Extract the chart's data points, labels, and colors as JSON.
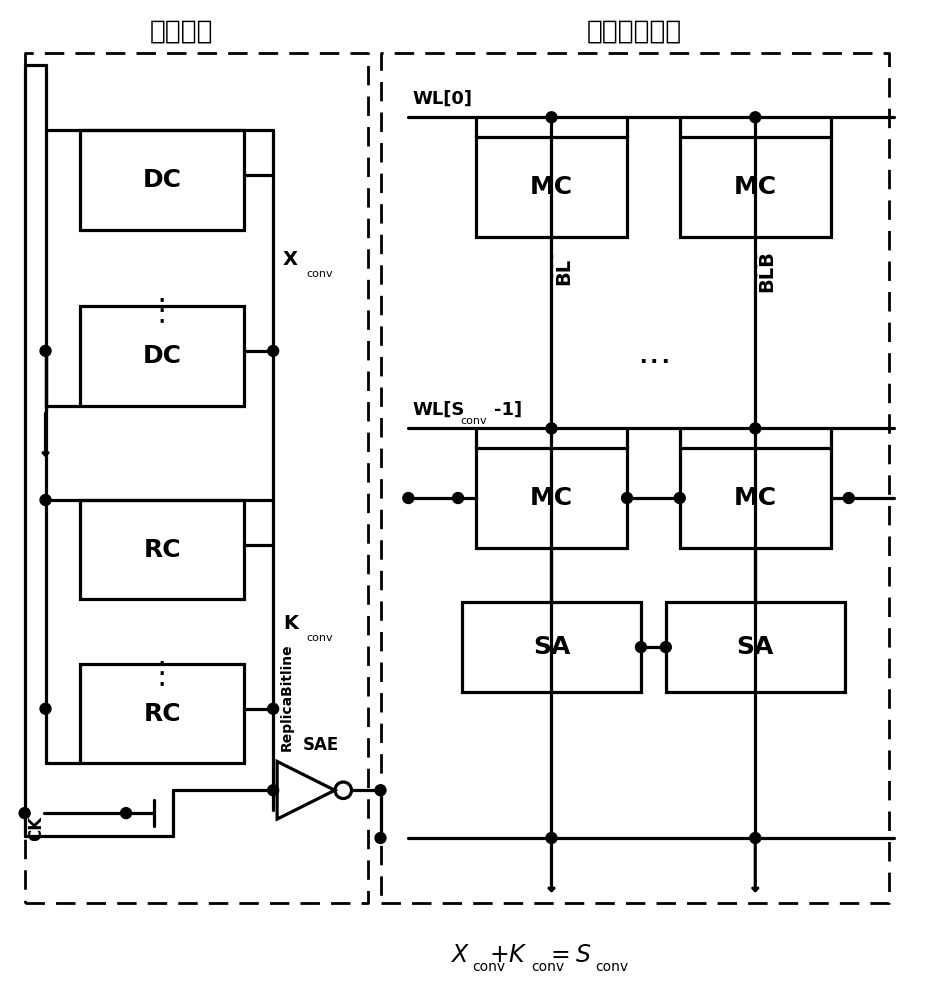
{
  "figsize": [
    9.33,
    10.0
  ],
  "dpi": 100,
  "label_timing": "时序复制",
  "label_memory": "存储单元阵列",
  "lw": 2.3,
  "xlim": [
    0,
    9.33
  ],
  "ylim": [
    0,
    10.0
  ]
}
